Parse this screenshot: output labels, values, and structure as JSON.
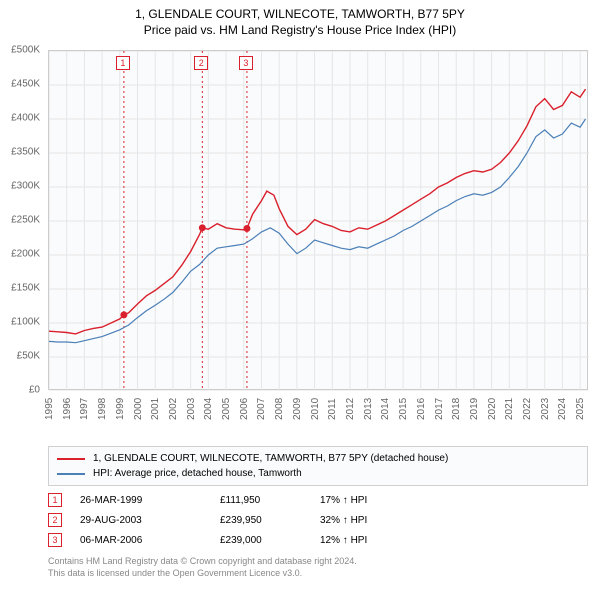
{
  "title_line1": "1, GLENDALE COURT, WILNECOTE, TAMWORTH, B77 5PY",
  "title_line2": "Price paid vs. HM Land Registry's House Price Index (HPI)",
  "chart": {
    "type": "line",
    "background_color": "#fafbfc",
    "grid_color": "#e6e6e6",
    "border_color": "#cccccc",
    "axis_text_color": "#666666",
    "axis_fontsize": 10,
    "ylim": [
      0,
      500000
    ],
    "ytick_step": 50000,
    "ytick_labels": [
      "£0",
      "£50K",
      "£100K",
      "£150K",
      "£200K",
      "£250K",
      "£300K",
      "£350K",
      "£400K",
      "£450K",
      "£500K"
    ],
    "x_range": [
      1995,
      2025.5
    ],
    "xtick_years": [
      1995,
      1996,
      1997,
      1998,
      1999,
      2000,
      2001,
      2002,
      2003,
      2004,
      2005,
      2006,
      2007,
      2008,
      2009,
      2010,
      2011,
      2012,
      2013,
      2014,
      2015,
      2016,
      2017,
      2018,
      2019,
      2020,
      2021,
      2022,
      2023,
      2024,
      2025
    ],
    "series": [
      {
        "name": "property",
        "label": "1, GLENDALE COURT, WILNECOTE, TAMWORTH, B77 5PY (detached house)",
        "color": "#d9202c",
        "line_width": 1.4,
        "points": [
          [
            1995.0,
            88000
          ],
          [
            1995.5,
            87000
          ],
          [
            1996.0,
            86000
          ],
          [
            1996.5,
            84000
          ],
          [
            1997.0,
            89000
          ],
          [
            1997.5,
            92000
          ],
          [
            1998.0,
            94000
          ],
          [
            1998.5,
            100000
          ],
          [
            1999.0,
            106000
          ],
          [
            1999.23,
            111950
          ],
          [
            1999.5,
            115000
          ],
          [
            2000.0,
            128000
          ],
          [
            2000.5,
            140000
          ],
          [
            2001.0,
            148000
          ],
          [
            2001.5,
            158000
          ],
          [
            2002.0,
            168000
          ],
          [
            2002.5,
            185000
          ],
          [
            2003.0,
            205000
          ],
          [
            2003.5,
            230000
          ],
          [
            2003.66,
            239950
          ],
          [
            2004.0,
            238000
          ],
          [
            2004.5,
            246000
          ],
          [
            2005.0,
            240000
          ],
          [
            2005.5,
            238000
          ],
          [
            2006.0,
            237000
          ],
          [
            2006.18,
            239000
          ],
          [
            2006.5,
            260000
          ],
          [
            2007.0,
            280000
          ],
          [
            2007.3,
            294000
          ],
          [
            2007.7,
            288000
          ],
          [
            2008.0,
            268000
          ],
          [
            2008.5,
            242000
          ],
          [
            2009.0,
            230000
          ],
          [
            2009.5,
            238000
          ],
          [
            2010.0,
            252000
          ],
          [
            2010.5,
            246000
          ],
          [
            2011.0,
            242000
          ],
          [
            2011.5,
            236000
          ],
          [
            2012.0,
            234000
          ],
          [
            2012.5,
            240000
          ],
          [
            2013.0,
            238000
          ],
          [
            2013.5,
            244000
          ],
          [
            2014.0,
            250000
          ],
          [
            2014.5,
            258000
          ],
          [
            2015.0,
            266000
          ],
          [
            2015.5,
            274000
          ],
          [
            2016.0,
            282000
          ],
          [
            2016.5,
            290000
          ],
          [
            2017.0,
            300000
          ],
          [
            2017.5,
            306000
          ],
          [
            2018.0,
            314000
          ],
          [
            2018.5,
            320000
          ],
          [
            2019.0,
            324000
          ],
          [
            2019.5,
            322000
          ],
          [
            2020.0,
            326000
          ],
          [
            2020.5,
            336000
          ],
          [
            2021.0,
            350000
          ],
          [
            2021.5,
            368000
          ],
          [
            2022.0,
            390000
          ],
          [
            2022.5,
            418000
          ],
          [
            2023.0,
            430000
          ],
          [
            2023.5,
            414000
          ],
          [
            2024.0,
            420000
          ],
          [
            2024.5,
            440000
          ],
          [
            2025.0,
            432000
          ],
          [
            2025.3,
            444000
          ]
        ]
      },
      {
        "name": "hpi",
        "label": "HPI: Average price, detached house, Tamworth",
        "color": "#4a7fb8",
        "line_width": 1.2,
        "points": [
          [
            1995.0,
            73000
          ],
          [
            1995.5,
            72000
          ],
          [
            1996.0,
            72000
          ],
          [
            1996.5,
            71000
          ],
          [
            1997.0,
            74000
          ],
          [
            1997.5,
            77000
          ],
          [
            1998.0,
            80000
          ],
          [
            1998.5,
            85000
          ],
          [
            1999.0,
            90000
          ],
          [
            1999.5,
            97000
          ],
          [
            2000.0,
            108000
          ],
          [
            2000.5,
            118000
          ],
          [
            2001.0,
            126000
          ],
          [
            2001.5,
            135000
          ],
          [
            2002.0,
            145000
          ],
          [
            2002.5,
            160000
          ],
          [
            2003.0,
            176000
          ],
          [
            2003.5,
            186000
          ],
          [
            2004.0,
            200000
          ],
          [
            2004.5,
            210000
          ],
          [
            2005.0,
            212000
          ],
          [
            2005.5,
            214000
          ],
          [
            2006.0,
            216000
          ],
          [
            2006.5,
            224000
          ],
          [
            2007.0,
            234000
          ],
          [
            2007.5,
            240000
          ],
          [
            2008.0,
            232000
          ],
          [
            2008.5,
            216000
          ],
          [
            2009.0,
            202000
          ],
          [
            2009.5,
            210000
          ],
          [
            2010.0,
            222000
          ],
          [
            2010.5,
            218000
          ],
          [
            2011.0,
            214000
          ],
          [
            2011.5,
            210000
          ],
          [
            2012.0,
            208000
          ],
          [
            2012.5,
            212000
          ],
          [
            2013.0,
            210000
          ],
          [
            2013.5,
            216000
          ],
          [
            2014.0,
            222000
          ],
          [
            2014.5,
            228000
          ],
          [
            2015.0,
            236000
          ],
          [
            2015.5,
            242000
          ],
          [
            2016.0,
            250000
          ],
          [
            2016.5,
            258000
          ],
          [
            2017.0,
            266000
          ],
          [
            2017.5,
            272000
          ],
          [
            2018.0,
            280000
          ],
          [
            2018.5,
            286000
          ],
          [
            2019.0,
            290000
          ],
          [
            2019.5,
            288000
          ],
          [
            2020.0,
            292000
          ],
          [
            2020.5,
            300000
          ],
          [
            2021.0,
            314000
          ],
          [
            2021.5,
            330000
          ],
          [
            2022.0,
            350000
          ],
          [
            2022.5,
            374000
          ],
          [
            2023.0,
            384000
          ],
          [
            2023.5,
            372000
          ],
          [
            2024.0,
            378000
          ],
          [
            2024.5,
            394000
          ],
          [
            2025.0,
            388000
          ],
          [
            2025.3,
            400000
          ]
        ]
      }
    ],
    "markers": [
      {
        "num": "1",
        "year": 1999.23,
        "value": 111950,
        "vline_color": "#d9202c"
      },
      {
        "num": "2",
        "year": 2003.66,
        "value": 239950,
        "vline_color": "#d9202c"
      },
      {
        "num": "3",
        "year": 2006.18,
        "value": 239000,
        "vline_color": "#d9202c"
      }
    ],
    "marker_dot_color": "#d9202c",
    "marker_dash": "2,3"
  },
  "legend": {
    "rows": [
      {
        "color": "#d9202c",
        "label": "1, GLENDALE COURT, WILNECOTE, TAMWORTH, B77 5PY (detached house)"
      },
      {
        "color": "#4a7fb8",
        "label": "HPI: Average price, detached house, Tamworth"
      }
    ]
  },
  "transactions": [
    {
      "num": "1",
      "date": "26-MAR-1999",
      "price": "£111,950",
      "delta": "17% ↑ HPI"
    },
    {
      "num": "2",
      "date": "29-AUG-2003",
      "price": "£239,950",
      "delta": "32% ↑ HPI"
    },
    {
      "num": "3",
      "date": "06-MAR-2006",
      "price": "£239,000",
      "delta": "12% ↑ HPI"
    }
  ],
  "attribution_line1": "Contains HM Land Registry data © Crown copyright and database right 2024.",
  "attribution_line2": "This data is licensed under the Open Government Licence v3.0."
}
